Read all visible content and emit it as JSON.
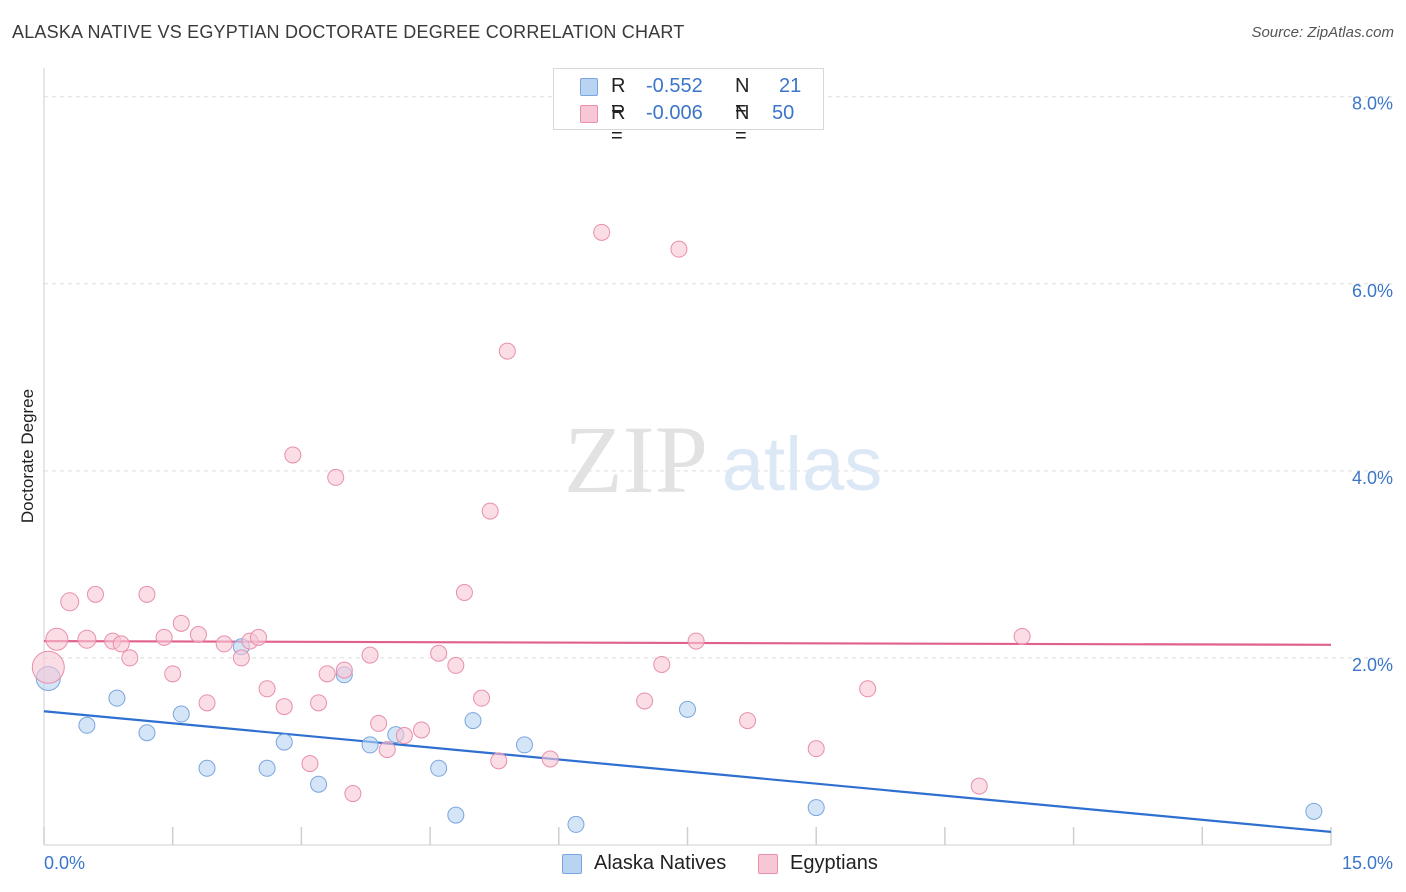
{
  "title": "ALASKA NATIVE VS EGYPTIAN DOCTORATE DEGREE CORRELATION CHART",
  "source": "Source: ZipAtlas.com",
  "watermark": {
    "zip": "ZIP",
    "atlas": "atlas"
  },
  "legend": {
    "rows": [
      {
        "r_label": "R =",
        "r_value": "-0.552",
        "n_label": "N =",
        "n_value": "21"
      },
      {
        "r_label": "R =",
        "r_value": "-0.006",
        "n_label": "N =",
        "n_value": "50"
      }
    ]
  },
  "bottom_legend": {
    "series_a": "Alaska Natives",
    "series_b": "Egyptians"
  },
  "colors": {
    "blue_fill": "#b9d3f3",
    "blue_stroke": "#7aa6dd",
    "blue_line": "#2f6fd0",
    "pink_fill": "#f8c7d5",
    "pink_stroke": "#e88fab",
    "pink_line": "#e0628a",
    "axis_text": "#3b76c9",
    "grid": "#dddddd"
  },
  "chart_data": {
    "type": "scatter",
    "title": "ALASKA NATIVE VS EGYPTIAN DOCTORATE DEGREE CORRELATION CHART",
    "xlabel": "",
    "ylabel": "Doctorate Degree",
    "xlim": [
      0,
      15
    ],
    "ylim": [
      0,
      8.2
    ],
    "x_tick_labels": [
      "0.0%",
      "15.0%"
    ],
    "y_ticks": [
      2,
      4,
      6,
      8
    ],
    "y_tick_labels": [
      "2.0%",
      "4.0%",
      "6.0%",
      "8.0%"
    ],
    "series": [
      {
        "name": "Alaska Natives",
        "color": "blue",
        "r": -0.552,
        "n": 21,
        "trend": {
          "x": [
            0,
            15
          ],
          "y": [
            1.43,
            0.14
          ]
        },
        "points": [
          [
            0.05,
            1.78,
            12
          ],
          [
            0.5,
            1.28,
            8
          ],
          [
            0.85,
            1.57,
            8
          ],
          [
            1.2,
            1.2,
            8
          ],
          [
            1.6,
            1.4,
            8
          ],
          [
            1.9,
            0.82,
            8
          ],
          [
            2.3,
            2.12,
            8
          ],
          [
            2.6,
            0.82,
            8
          ],
          [
            2.8,
            1.1,
            8
          ],
          [
            3.2,
            0.65,
            8
          ],
          [
            3.5,
            1.82,
            8
          ],
          [
            3.8,
            1.07,
            8
          ],
          [
            4.1,
            1.18,
            8
          ],
          [
            4.6,
            0.82,
            8
          ],
          [
            4.8,
            0.32,
            8
          ],
          [
            5.0,
            1.33,
            8
          ],
          [
            5.6,
            1.07,
            8
          ],
          [
            6.2,
            0.22,
            8
          ],
          [
            7.5,
            1.45,
            8
          ],
          [
            9.0,
            0.4,
            8
          ],
          [
            14.8,
            0.36,
            8
          ]
        ]
      },
      {
        "name": "Egyptians",
        "color": "pink",
        "r": -0.006,
        "n": 50,
        "trend": {
          "x": [
            0,
            15
          ],
          "y": [
            2.18,
            2.14
          ]
        },
        "points": [
          [
            0.05,
            1.9,
            16
          ],
          [
            0.15,
            2.2,
            11
          ],
          [
            0.3,
            2.6,
            9
          ],
          [
            0.5,
            2.2,
            9
          ],
          [
            0.6,
            2.68,
            8
          ],
          [
            0.8,
            2.18,
            8
          ],
          [
            0.9,
            2.15,
            8
          ],
          [
            1.0,
            2.0,
            8
          ],
          [
            1.2,
            2.68,
            8
          ],
          [
            1.4,
            2.22,
            8
          ],
          [
            1.5,
            1.83,
            8
          ],
          [
            1.6,
            2.37,
            8
          ],
          [
            1.8,
            2.25,
            8
          ],
          [
            1.9,
            1.52,
            8
          ],
          [
            2.1,
            2.15,
            8
          ],
          [
            2.3,
            2.0,
            8
          ],
          [
            2.4,
            2.18,
            8
          ],
          [
            2.5,
            2.22,
            8
          ],
          [
            2.6,
            1.67,
            8
          ],
          [
            2.8,
            1.48,
            8
          ],
          [
            2.9,
            4.17,
            8
          ],
          [
            3.1,
            0.87,
            8
          ],
          [
            3.2,
            1.52,
            8
          ],
          [
            3.3,
            1.83,
            8
          ],
          [
            3.4,
            3.93,
            8
          ],
          [
            3.5,
            1.87,
            8
          ],
          [
            3.6,
            0.55,
            8
          ],
          [
            3.8,
            2.03,
            8
          ],
          [
            3.9,
            1.3,
            8
          ],
          [
            4.0,
            1.02,
            8
          ],
          [
            4.2,
            1.17,
            8
          ],
          [
            4.4,
            1.23,
            8
          ],
          [
            4.6,
            2.05,
            8
          ],
          [
            4.8,
            1.92,
            8
          ],
          [
            4.9,
            2.7,
            8
          ],
          [
            5.1,
            1.57,
            8
          ],
          [
            5.2,
            3.57,
            8
          ],
          [
            5.3,
            0.9,
            8
          ],
          [
            5.4,
            5.28,
            8
          ],
          [
            5.9,
            0.92,
            8
          ],
          [
            6.5,
            6.55,
            8
          ],
          [
            7.0,
            1.54,
            8
          ],
          [
            7.2,
            1.93,
            8
          ],
          [
            7.4,
            6.37,
            8
          ],
          [
            7.6,
            2.18,
            8
          ],
          [
            8.2,
            1.33,
            8
          ],
          [
            9.0,
            1.03,
            8
          ],
          [
            9.6,
            1.67,
            8
          ],
          [
            10.9,
            0.63,
            8
          ],
          [
            11.4,
            2.23,
            8
          ]
        ]
      }
    ]
  }
}
